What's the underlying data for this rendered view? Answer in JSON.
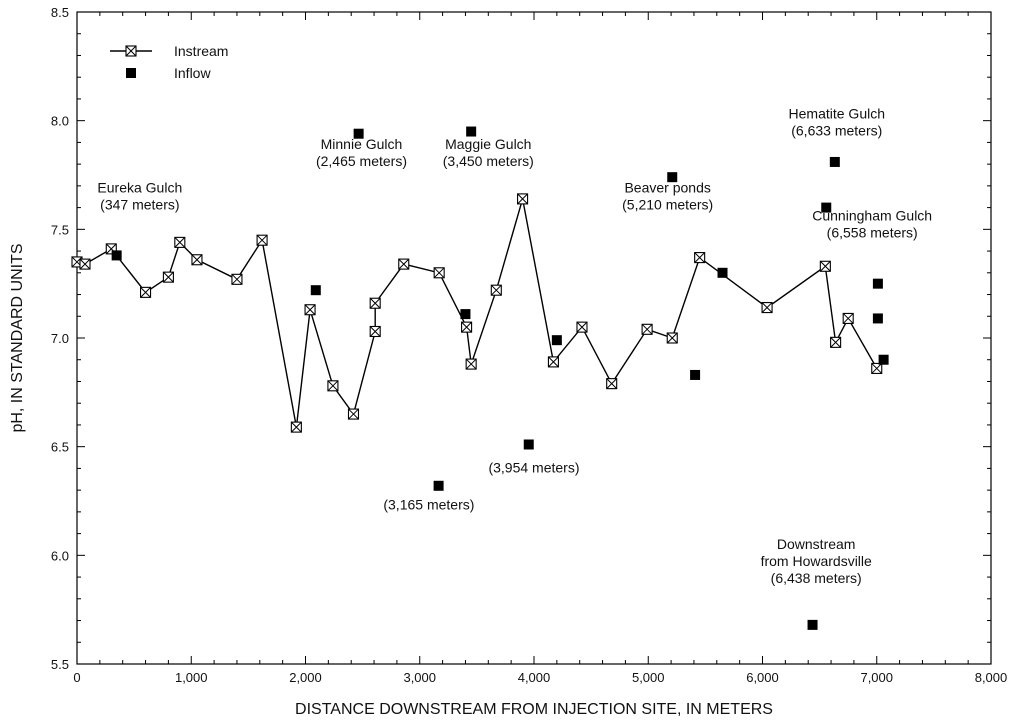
{
  "chart_data": {
    "type": "scatter",
    "xlabel": "DISTANCE DOWNSTREAM FROM INJECTION SITE, IN METERS",
    "ylabel": "pH, IN STANDARD UNITS",
    "xlim": [
      0,
      8000
    ],
    "ylim": [
      5.5,
      8.5
    ],
    "x_ticks": [
      0,
      1000,
      2000,
      3000,
      4000,
      5000,
      6000,
      7000,
      8000
    ],
    "x_tick_labels": [
      "0",
      "1,000",
      "2,000",
      "3,000",
      "4,000",
      "5,000",
      "6,000",
      "7,000",
      "8,000"
    ],
    "y_ticks": [
      5.5,
      6.0,
      6.5,
      7.0,
      7.5,
      8.0,
      8.5
    ],
    "y_tick_labels": [
      "5.5",
      "6.0",
      "6.5",
      "7.0",
      "7.5",
      "8.0",
      "8.5"
    ],
    "grid": false,
    "legend": {
      "placement": "top-left",
      "items": [
        {
          "label": "Instream",
          "marker": "boxed-x-line"
        },
        {
          "label": "Inflow",
          "marker": "filled-square"
        }
      ]
    },
    "series": [
      {
        "name": "Instream",
        "style": "line-with-boxed-x-markers",
        "x": [
          0,
          70,
          300,
          600,
          800,
          900,
          1050,
          1400,
          1620,
          1920,
          2040,
          2240,
          2420,
          2610,
          2610,
          2860,
          3170,
          3410,
          3450,
          3670,
          3900,
          4170,
          4420,
          4680,
          4990,
          5210,
          5450,
          6040,
          6550,
          6640,
          6750,
          7000
        ],
        "y": [
          7.35,
          7.34,
          7.41,
          7.21,
          7.28,
          7.44,
          7.36,
          7.27,
          7.45,
          6.59,
          7.13,
          6.78,
          6.65,
          7.03,
          7.16,
          7.34,
          7.3,
          7.05,
          6.88,
          7.22,
          7.64,
          6.89,
          7.05,
          6.79,
          7.04,
          7.0,
          7.37,
          7.14,
          7.33,
          6.98,
          7.09,
          6.86
        ]
      },
      {
        "name": "Inflow",
        "style": "filled-square",
        "x": [
          347,
          2090,
          2465,
          3165,
          3400,
          3450,
          3954,
          4200,
          5210,
          5410,
          5650,
          6438,
          6558,
          6633,
          7010,
          7010,
          7060
        ],
        "y": [
          7.38,
          7.22,
          7.94,
          6.32,
          7.11,
          7.95,
          6.51,
          6.99,
          7.74,
          6.83,
          7.3,
          5.68,
          7.6,
          7.81,
          7.25,
          7.09,
          6.9
        ]
      }
    ],
    "annotations": [
      {
        "lines": [
          "Eureka Gulch",
          "(347 meters)"
        ],
        "x": 550,
        "y": 7.67
      },
      {
        "lines": [
          "Minnie Gulch",
          "(2,465 meters)"
        ],
        "x": 2490,
        "y": 7.87
      },
      {
        "lines": [
          "Maggie Gulch",
          "(3,450 meters)"
        ],
        "x": 3600,
        "y": 7.87
      },
      {
        "lines": [
          "Beaver ponds",
          "(5,210 meters)"
        ],
        "x": 5170,
        "y": 7.67
      },
      {
        "lines": [
          "Hematite Gulch",
          "(6,633 meters)"
        ],
        "x": 6650,
        "y": 8.01
      },
      {
        "lines": [
          "Cunningham Gulch",
          "(6,558 meters)"
        ],
        "x": 6960,
        "y": 7.54
      },
      {
        "lines": [
          "(3,954 meters)"
        ],
        "x": 4000,
        "y": 6.38
      },
      {
        "lines": [
          "(3,165 meters)"
        ],
        "x": 3080,
        "y": 6.21
      },
      {
        "lines": [
          "Downstream",
          "from Howardsville",
          "(6,438 meters)"
        ],
        "x": 6470,
        "y": 6.03
      }
    ]
  }
}
